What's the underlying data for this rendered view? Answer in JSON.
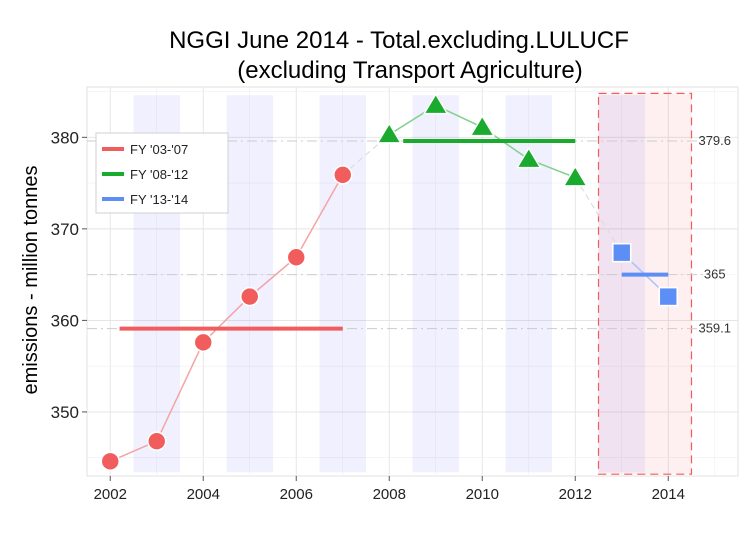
{
  "chart_data": {
    "type": "line",
    "title": "NGGI June 2014 - Total.excluding.LULUCF",
    "subtitle": "(excluding Transport Agriculture)",
    "xlabel": "",
    "ylabel": "emissions - million tonnes",
    "xlim": [
      2001.5,
      2015.5
    ],
    "ylim": [
      343,
      385.5
    ],
    "x_ticks": [
      2002,
      2004,
      2006,
      2008,
      2010,
      2012,
      2014
    ],
    "y_ticks": [
      350,
      360,
      370,
      380
    ],
    "grid": true,
    "legend_position": "top-left",
    "series": [
      {
        "name": "FY '03-'07",
        "color": "#f15d5d",
        "marker": "circle",
        "x": [
          2002,
          2003,
          2004,
          2005,
          2006,
          2007
        ],
        "y": [
          344.6,
          346.8,
          357.6,
          362.6,
          366.9,
          375.9
        ],
        "period_mean": 359.1,
        "mean_x_range": [
          2002.2,
          2007
        ]
      },
      {
        "name": "FY '08-'12",
        "color": "#1aab2e",
        "marker": "triangle",
        "x": [
          2008,
          2009,
          2010,
          2011,
          2012
        ],
        "y": [
          380.3,
          383.5,
          381.1,
          377.6,
          375.6
        ],
        "period_mean": 379.6,
        "mean_x_range": [
          2008.3,
          2012
        ]
      },
      {
        "name": "FY '13-'14",
        "color": "#5c8ef5",
        "marker": "square",
        "x": [
          2013,
          2014
        ],
        "y": [
          367.4,
          362.6
        ],
        "period_mean": 365,
        "mean_x_range": [
          2013,
          2014
        ]
      }
    ],
    "reference_lines": [
      {
        "value": 379.6,
        "label": "379.6"
      },
      {
        "value": 365,
        "label": "365"
      },
      {
        "value": 359.1,
        "label": "359.1"
      }
    ],
    "shaded_bands": [
      [
        2002.5,
        2003.5
      ],
      [
        2004.5,
        2005.5
      ],
      [
        2006.5,
        2007.5
      ],
      [
        2008.5,
        2009.5
      ],
      [
        2010.5,
        2011.5
      ],
      [
        2012.5,
        2013.5
      ]
    ],
    "highlight_box": {
      "x": [
        2012.5,
        2014.5
      ],
      "color": "#f15d5d"
    }
  }
}
